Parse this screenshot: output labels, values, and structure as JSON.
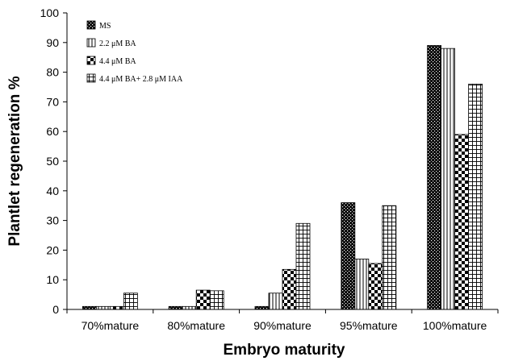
{
  "chart_data": {
    "type": "bar",
    "xlabel": "Embryo maturity",
    "ylabel": "Plantlet regeneration %",
    "ylim": [
      0,
      100
    ],
    "yticks": [
      0,
      10,
      20,
      30,
      40,
      50,
      60,
      70,
      80,
      90,
      100
    ],
    "categories": [
      "70%mature",
      "80%mature",
      "90%mature",
      "95%mature",
      "100%mature"
    ],
    "legend_position": "top-left",
    "series": [
      {
        "name": "MS",
        "pattern": "dense-dots",
        "values": [
          1,
          1,
          1,
          36,
          89
        ]
      },
      {
        "name": "2.2 μM BA",
        "pattern": "vertical-lines",
        "values": [
          1,
          1,
          5.5,
          17,
          88
        ]
      },
      {
        "name": "4.4 μM BA",
        "pattern": "checker",
        "values": [
          1,
          6.5,
          13.5,
          15.5,
          59
        ]
      },
      {
        "name": "4.4 μM BA+ 2.8 μM IAA",
        "pattern": "grid",
        "values": [
          5.5,
          6.3,
          29,
          35,
          76
        ]
      }
    ]
  }
}
